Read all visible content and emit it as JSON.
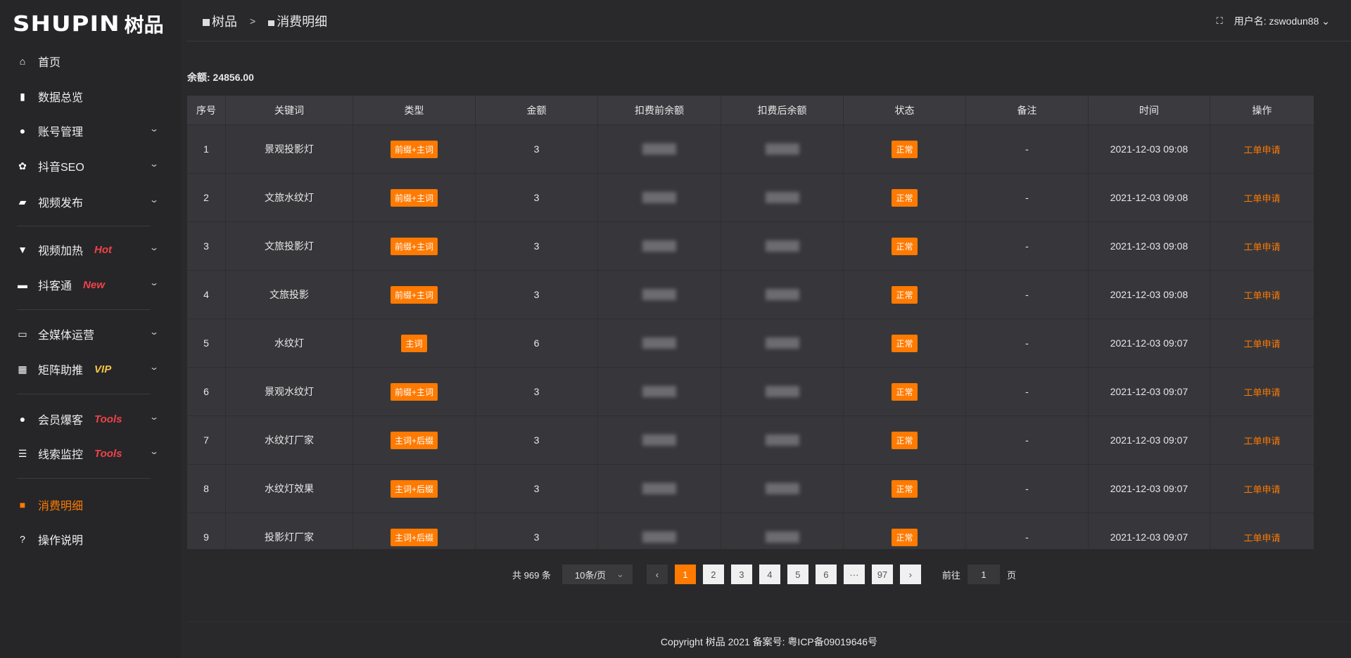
{
  "logo": {
    "en": "SHUPIN",
    "cn": "树品"
  },
  "sidebar": {
    "items": [
      {
        "label": "首页",
        "icon": "home-icon",
        "glyph": "⌂"
      },
      {
        "label": "数据总览",
        "icon": "bar-chart-icon",
        "glyph": "▮"
      },
      {
        "label": "账号管理",
        "icon": "user-icon",
        "glyph": "●",
        "chevron": true
      },
      {
        "label": "抖音SEO",
        "icon": "gear-icon",
        "glyph": "✿",
        "chevron": true
      },
      {
        "label": "视频发布",
        "icon": "video-icon",
        "glyph": "▰",
        "chevron": true
      },
      {
        "label": "视频加热",
        "icon": "brush-icon",
        "glyph": "▼",
        "tag": "Hot",
        "chevron": true
      },
      {
        "label": "抖客通",
        "icon": "chat-icon",
        "glyph": "▬",
        "tag": "New",
        "chevron": true
      },
      {
        "label": "全媒体运营",
        "icon": "monitor-icon",
        "glyph": "▭",
        "chevron": true
      },
      {
        "label": "矩阵助推",
        "icon": "grid-icon",
        "glyph": "▦",
        "tag": "VIP",
        "chevron": true
      },
      {
        "label": "会员爆客",
        "icon": "user-icon",
        "glyph": "●",
        "tag": "Tools",
        "chevron": true
      },
      {
        "label": "线索监控",
        "icon": "sliders-icon",
        "glyph": "☰",
        "tag": "Tools",
        "chevron": true
      },
      {
        "label": "消费明细",
        "icon": "wallet-icon",
        "glyph": "■",
        "active": true
      },
      {
        "label": "操作说明",
        "icon": "help-icon",
        "glyph": "?"
      }
    ]
  },
  "header": {
    "breadcrumb": [
      "树品",
      "消费明细"
    ],
    "separator": ">",
    "user_label": "用户名: zswodun88"
  },
  "balance": "余额: 24856.00",
  "table": {
    "columns": [
      "序号",
      "关键词",
      "类型",
      "金额",
      "扣费前余额",
      "扣费后余额",
      "状态",
      "备注",
      "时间",
      "操作"
    ],
    "rows": [
      {
        "no": "1",
        "keyword": "景观投影灯",
        "type": "前缀+主词",
        "amount": "3",
        "status": "正常",
        "note": "-",
        "time": "2021-12-03 09:08",
        "action": "工单申请"
      },
      {
        "no": "2",
        "keyword": "文旅水纹灯",
        "type": "前缀+主词",
        "amount": "3",
        "status": "正常",
        "note": "-",
        "time": "2021-12-03 09:08",
        "action": "工单申请"
      },
      {
        "no": "3",
        "keyword": "文旅投影灯",
        "type": "前缀+主词",
        "amount": "3",
        "status": "正常",
        "note": "-",
        "time": "2021-12-03 09:08",
        "action": "工单申请"
      },
      {
        "no": "4",
        "keyword": "文旅投影",
        "type": "前缀+主词",
        "amount": "3",
        "status": "正常",
        "note": "-",
        "time": "2021-12-03 09:08",
        "action": "工单申请"
      },
      {
        "no": "5",
        "keyword": "水纹灯",
        "type": "主词",
        "amount": "6",
        "status": "正常",
        "note": "-",
        "time": "2021-12-03 09:07",
        "action": "工单申请"
      },
      {
        "no": "6",
        "keyword": "景观水纹灯",
        "type": "前缀+主词",
        "amount": "3",
        "status": "正常",
        "note": "-",
        "time": "2021-12-03 09:07",
        "action": "工单申请"
      },
      {
        "no": "7",
        "keyword": "水纹灯厂家",
        "type": "主词+后缀",
        "amount": "3",
        "status": "正常",
        "note": "-",
        "time": "2021-12-03 09:07",
        "action": "工单申请"
      },
      {
        "no": "8",
        "keyword": "水纹灯效果",
        "type": "主词+后缀",
        "amount": "3",
        "status": "正常",
        "note": "-",
        "time": "2021-12-03 09:07",
        "action": "工单申请"
      },
      {
        "no": "9",
        "keyword": "投影灯厂家",
        "type": "主词+后缀",
        "amount": "3",
        "status": "正常",
        "note": "-",
        "time": "2021-12-03 09:07",
        "action": "工单申请"
      }
    ]
  },
  "pagination": {
    "total": "共 969 条",
    "page_size": "10条/页",
    "pages": [
      "1",
      "2",
      "3",
      "4",
      "5",
      "6",
      "···",
      "97"
    ],
    "current": "1",
    "goto_label": "前往",
    "goto_value": "1",
    "page_suffix": "页"
  },
  "footer": "Copyright 树品 2021 备案号: 粤ICP备09019646号",
  "colors": {
    "accent": "#ff7a00",
    "hot": "#f0424a",
    "vip": "#f5c542"
  }
}
